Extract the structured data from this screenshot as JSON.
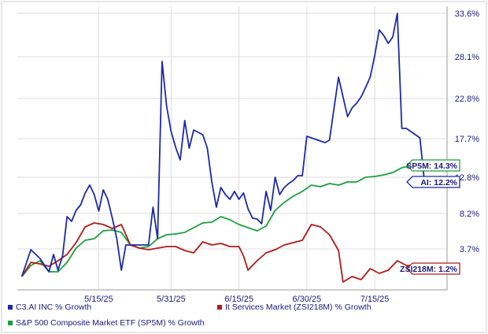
{
  "chart_data": {
    "type": "line",
    "title": "",
    "xlabel": "",
    "ylabel": "",
    "x_ticks": [
      "5/15/25",
      "5/31/25",
      "6/15/25",
      "6/30/25",
      "7/15/25"
    ],
    "y_ticks": [
      "33.6%",
      "28.1%",
      "22.8%",
      "17.7%",
      "12.8%",
      "8.2%",
      "3.7%"
    ],
    "y_tick_values": [
      33.6,
      28.1,
      22.8,
      17.7,
      12.8,
      8.2,
      3.7
    ],
    "ylim": [
      -1.5,
      34.5
    ],
    "grid": true,
    "legend_position": "bottom",
    "series": [
      {
        "name": "C3.AI INC % Growth",
        "color": "#1c2aa8",
        "end_label": "AI: 12.2%",
        "points": [
          [
            "2025-04-28",
            0.2
          ],
          [
            "2025-04-30",
            3.6
          ],
          [
            "2025-05-02",
            2.5
          ],
          [
            "2025-05-04",
            0.8
          ],
          [
            "2025-05-05",
            3.0
          ],
          [
            "2025-05-06",
            1.0
          ],
          [
            "2025-05-07",
            2.8
          ],
          [
            "2025-05-08",
            7.8
          ],
          [
            "2025-05-09",
            7.2
          ],
          [
            "2025-05-10",
            8.6
          ],
          [
            "2025-05-11",
            9.3
          ],
          [
            "2025-05-12",
            10.8
          ],
          [
            "2025-05-13",
            11.8
          ],
          [
            "2025-05-14",
            10.6
          ],
          [
            "2025-05-15",
            8.5
          ],
          [
            "2025-05-16",
            11.2
          ],
          [
            "2025-05-17",
            10.0
          ],
          [
            "2025-05-18",
            7.6
          ],
          [
            "2025-05-19",
            5.0
          ],
          [
            "2025-05-20",
            1.0
          ],
          [
            "2025-05-21",
            4.2
          ],
          [
            "2025-05-22",
            4.2
          ],
          [
            "2025-05-23",
            4.2
          ],
          [
            "2025-05-24",
            4.2
          ],
          [
            "2025-05-25",
            4.2
          ],
          [
            "2025-05-26",
            4.2
          ],
          [
            "2025-05-27",
            9.0
          ],
          [
            "2025-05-28",
            5.0
          ],
          [
            "2025-05-29",
            27.5
          ],
          [
            "2025-05-30",
            21.8
          ],
          [
            "2025-05-31",
            18.6
          ],
          [
            "2025-06-01",
            16.6
          ],
          [
            "2025-06-02",
            15.0
          ],
          [
            "2025-06-03",
            20.0
          ],
          [
            "2025-06-04",
            16.5
          ],
          [
            "2025-06-05",
            18.8
          ],
          [
            "2025-06-06",
            18.5
          ],
          [
            "2025-06-07",
            18.2
          ],
          [
            "2025-06-08",
            16.5
          ],
          [
            "2025-06-09",
            12.2
          ],
          [
            "2025-06-10",
            9.0
          ],
          [
            "2025-06-11",
            11.5
          ],
          [
            "2025-06-12",
            10.6
          ],
          [
            "2025-06-13",
            10.0
          ],
          [
            "2025-06-14",
            11.0
          ],
          [
            "2025-06-15",
            10.0
          ],
          [
            "2025-06-16",
            10.8
          ],
          [
            "2025-06-17",
            8.8
          ],
          [
            "2025-06-18",
            7.6
          ],
          [
            "2025-06-19",
            7.5
          ],
          [
            "2025-06-20",
            6.9
          ],
          [
            "2025-06-21",
            11.0
          ],
          [
            "2025-06-22",
            8.6
          ],
          [
            "2025-06-23",
            12.8
          ],
          [
            "2025-06-24",
            10.6
          ],
          [
            "2025-06-25",
            11.5
          ],
          [
            "2025-06-26",
            12.0
          ],
          [
            "2025-06-27",
            12.4
          ],
          [
            "2025-06-28",
            13.0
          ],
          [
            "2025-06-29",
            13.0
          ],
          [
            "2025-06-30",
            18.0
          ],
          [
            "2025-07-01",
            17.8
          ],
          [
            "2025-07-02",
            17.6
          ],
          [
            "2025-07-03",
            17.4
          ],
          [
            "2025-07-04",
            17.2
          ],
          [
            "2025-07-05",
            17.5
          ],
          [
            "2025-07-06",
            21.5
          ],
          [
            "2025-07-07",
            25.5
          ],
          [
            "2025-07-08",
            23.0
          ],
          [
            "2025-07-09",
            20.5
          ],
          [
            "2025-07-10",
            21.6
          ],
          [
            "2025-07-11",
            22.2
          ],
          [
            "2025-07-12",
            23.0
          ],
          [
            "2025-07-13",
            24.2
          ],
          [
            "2025-07-14",
            25.5
          ],
          [
            "2025-07-15",
            28.2
          ],
          [
            "2025-07-16",
            31.5
          ],
          [
            "2025-07-17",
            30.8
          ],
          [
            "2025-07-18",
            29.8
          ],
          [
            "2025-07-19",
            30.6
          ],
          [
            "2025-07-20",
            33.6
          ],
          [
            "2025-07-21",
            19.0
          ],
          [
            "2025-07-22",
            19.0
          ],
          [
            "2025-07-23",
            18.6
          ],
          [
            "2025-07-24",
            18.2
          ],
          [
            "2025-07-25",
            17.8
          ],
          [
            "2025-07-26",
            12.2
          ]
        ]
      },
      {
        "name": "It Services Market (ZSI218M) % Growth",
        "color": "#b01c1c",
        "end_label": "ZSI218M: 1.2%",
        "points": [
          [
            "2025-04-28",
            0.2
          ],
          [
            "2025-04-30",
            2.0
          ],
          [
            "2025-05-02",
            1.8
          ],
          [
            "2025-05-04",
            1.5
          ],
          [
            "2025-05-06",
            2.2
          ],
          [
            "2025-05-08",
            3.0
          ],
          [
            "2025-05-10",
            4.5
          ],
          [
            "2025-05-12",
            6.5
          ],
          [
            "2025-05-14",
            7.0
          ],
          [
            "2025-05-16",
            6.8
          ],
          [
            "2025-05-18",
            6.3
          ],
          [
            "2025-05-20",
            6.8
          ],
          [
            "2025-05-22",
            4.2
          ],
          [
            "2025-05-24",
            3.8
          ],
          [
            "2025-05-26",
            3.6
          ],
          [
            "2025-05-28",
            3.8
          ],
          [
            "2025-05-30",
            4.0
          ],
          [
            "2025-06-01",
            4.0
          ],
          [
            "2025-06-03",
            3.5
          ],
          [
            "2025-06-05",
            3.2
          ],
          [
            "2025-06-07",
            4.6
          ],
          [
            "2025-06-09",
            4.2
          ],
          [
            "2025-06-11",
            4.4
          ],
          [
            "2025-06-13",
            4.0
          ],
          [
            "2025-06-15",
            4.0
          ],
          [
            "2025-06-16",
            2.8
          ],
          [
            "2025-06-17",
            1.0
          ],
          [
            "2025-06-19",
            2.2
          ],
          [
            "2025-06-21",
            3.2
          ],
          [
            "2025-06-23",
            3.6
          ],
          [
            "2025-06-25",
            4.2
          ],
          [
            "2025-06-27",
            4.5
          ],
          [
            "2025-06-29",
            4.8
          ],
          [
            "2025-07-01",
            6.8
          ],
          [
            "2025-07-03",
            6.5
          ],
          [
            "2025-07-05",
            5.5
          ],
          [
            "2025-07-07",
            3.5
          ],
          [
            "2025-07-08",
            -0.5
          ],
          [
            "2025-07-10",
            0.2
          ],
          [
            "2025-07-12",
            -0.2
          ],
          [
            "2025-07-14",
            1.2
          ],
          [
            "2025-07-16",
            0.6
          ],
          [
            "2025-07-18",
            1.0
          ],
          [
            "2025-07-20",
            2.2
          ],
          [
            "2025-07-22",
            1.6
          ],
          [
            "2025-07-24",
            1.6
          ],
          [
            "2025-07-26",
            1.2
          ]
        ]
      },
      {
        "name": "S&P 500 Composite Market ETF (SP5M) % Growth",
        "color": "#1e9e3c",
        "end_label": "SP5M: 14.3%",
        "points": [
          [
            "2025-04-28",
            0.2
          ],
          [
            "2025-04-30",
            1.6
          ],
          [
            "2025-05-02",
            2.2
          ],
          [
            "2025-05-04",
            0.8
          ],
          [
            "2025-05-06",
            0.8
          ],
          [
            "2025-05-08",
            2.0
          ],
          [
            "2025-05-10",
            3.8
          ],
          [
            "2025-05-12",
            4.8
          ],
          [
            "2025-05-14",
            5.0
          ],
          [
            "2025-05-16",
            6.0
          ],
          [
            "2025-05-18",
            6.1
          ],
          [
            "2025-05-20",
            5.8
          ],
          [
            "2025-05-22",
            4.2
          ],
          [
            "2025-05-24",
            3.8
          ],
          [
            "2025-05-26",
            4.0
          ],
          [
            "2025-05-28",
            5.0
          ],
          [
            "2025-05-30",
            5.5
          ],
          [
            "2025-06-01",
            5.6
          ],
          [
            "2025-06-03",
            5.8
          ],
          [
            "2025-06-05",
            6.4
          ],
          [
            "2025-06-07",
            7.0
          ],
          [
            "2025-06-09",
            7.1
          ],
          [
            "2025-06-11",
            7.8
          ],
          [
            "2025-06-13",
            7.4
          ],
          [
            "2025-06-15",
            6.8
          ],
          [
            "2025-06-17",
            6.4
          ],
          [
            "2025-06-19",
            6.0
          ],
          [
            "2025-06-21",
            6.6
          ],
          [
            "2025-06-23",
            8.6
          ],
          [
            "2025-06-25",
            9.6
          ],
          [
            "2025-06-27",
            10.4
          ],
          [
            "2025-06-29",
            11.0
          ],
          [
            "2025-07-01",
            11.8
          ],
          [
            "2025-07-03",
            11.6
          ],
          [
            "2025-07-05",
            12.0
          ],
          [
            "2025-07-07",
            11.8
          ],
          [
            "2025-07-09",
            12.2
          ],
          [
            "2025-07-11",
            12.2
          ],
          [
            "2025-07-13",
            12.8
          ],
          [
            "2025-07-15",
            12.9
          ],
          [
            "2025-07-17",
            13.1
          ],
          [
            "2025-07-19",
            13.4
          ],
          [
            "2025-07-21",
            14.0
          ],
          [
            "2025-07-23",
            14.3
          ],
          [
            "2025-07-26",
            14.3
          ]
        ]
      }
    ]
  }
}
